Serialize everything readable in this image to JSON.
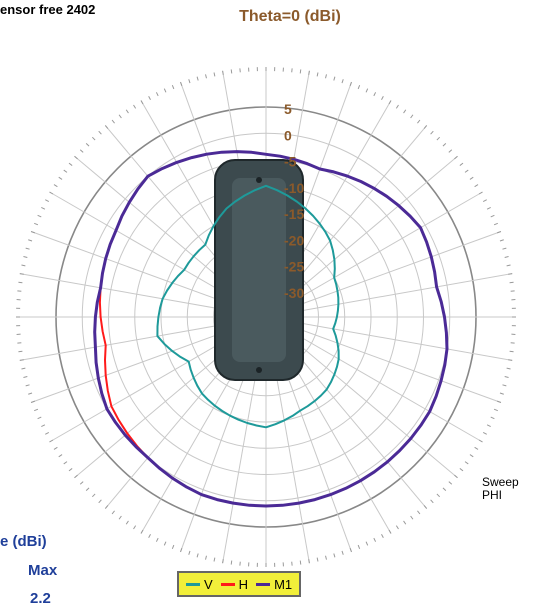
{
  "header": {
    "corner_title": "ensor free 2402"
  },
  "sweep": {
    "line1": "Sweep",
    "line2": "PHI"
  },
  "stats": {
    "title": "e (dBi)",
    "col_head": "Max",
    "value": "2.2"
  },
  "colors": {
    "V": "#1e9a9a",
    "H": "#ff1a1a",
    "M1": "#4b2a96",
    "title": "#8b5a2b",
    "stats": "#1f3f9a",
    "legend_bg": "#f2ef3a"
  },
  "device": {
    "name": "sensor-device-photo"
  },
  "chart_data": {
    "type": "polar",
    "title": "Theta=0 (dBi)",
    "r_ticks": [
      5,
      0,
      -5,
      -10,
      -15,
      -20,
      -25,
      -30
    ],
    "r_tick_labels": [
      "5",
      "0",
      "-5",
      "-10",
      "-15",
      "-20",
      "-25",
      "-30"
    ],
    "r_range": [
      -35,
      5
    ],
    "angle_step_deg": 10,
    "grid": true,
    "legend": "bottom-center",
    "angles_deg": [
      0,
      20,
      40,
      60,
      80,
      100,
      120,
      140,
      160,
      180,
      200,
      220,
      240,
      260,
      280,
      300,
      320,
      340
    ],
    "series": [
      {
        "name": "V",
        "color": "#1e9a9a",
        "values": [
          -10,
          -13,
          -16,
          -20,
          -21,
          -22,
          -19,
          -17,
          -16,
          -14,
          -15,
          -16,
          -18,
          -14,
          -15,
          -17,
          -17,
          -13
        ]
      },
      {
        "name": "H",
        "color": "#ff1a1a",
        "values": [
          -4,
          -5,
          -3,
          -1,
          -2,
          0,
          1,
          1,
          1,
          1,
          1,
          0,
          -1,
          -4,
          -3,
          -2,
          0,
          -2
        ]
      },
      {
        "name": "M1",
        "color": "#4b2a96",
        "values": [
          -4,
          -5,
          -3,
          -1,
          -2,
          0,
          1,
          1,
          1,
          1,
          1,
          0,
          0,
          -2,
          -3,
          -2,
          0,
          -2
        ]
      }
    ]
  }
}
